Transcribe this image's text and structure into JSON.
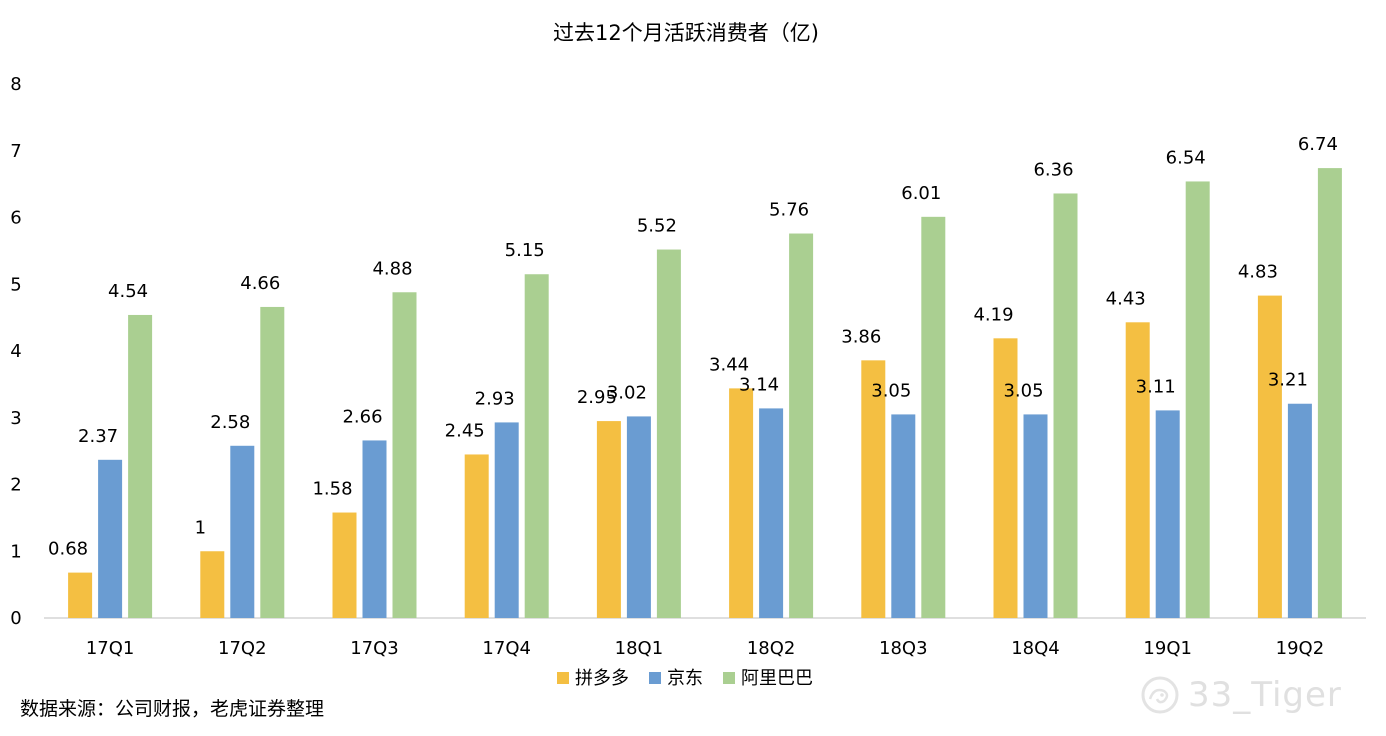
{
  "chart_data": {
    "type": "bar",
    "title": "过去12个月活跃消费者（亿)",
    "categories": [
      "17Q1",
      "17Q2",
      "17Q3",
      "17Q4",
      "18Q1",
      "18Q2",
      "18Q3",
      "18Q4",
      "19Q1",
      "19Q2"
    ],
    "series": [
      {
        "name": "拼多多",
        "color": "#F4BF42",
        "values": [
          0.68,
          1,
          1.58,
          2.45,
          2.95,
          3.44,
          3.86,
          4.19,
          4.43,
          4.83
        ],
        "labels": [
          "0.68",
          "1",
          "1.58",
          "2.45",
          "2.95",
          "3.44",
          "3.86",
          "4.19",
          "4.43",
          "4.83"
        ]
      },
      {
        "name": "京东",
        "color": "#6A9CD2",
        "values": [
          2.37,
          2.58,
          2.66,
          2.93,
          3.02,
          3.14,
          3.05,
          3.05,
          3.11,
          3.21
        ],
        "labels": [
          "2.37",
          "2.58",
          "2.66",
          "2.93",
          "3.02",
          "3.14",
          "3.05",
          "3.05",
          "3.11",
          "3.21"
        ]
      },
      {
        "name": "阿里巴巴",
        "color": "#AACF91",
        "values": [
          4.54,
          4.66,
          4.88,
          5.15,
          5.52,
          5.76,
          6.01,
          6.36,
          6.54,
          6.74
        ],
        "labels": [
          "4.54",
          "4.66",
          "4.88",
          "5.15",
          "5.52",
          "5.76",
          "6.01",
          "6.36",
          "6.54",
          "6.74"
        ]
      }
    ],
    "ylim": [
      0,
      8
    ],
    "yticks": [
      "0",
      "1",
      "2",
      "3",
      "4",
      "5",
      "6",
      "7",
      "8"
    ],
    "grid": false,
    "legend": "bottom"
  },
  "source_note": "数据来源：公司财报，老虎证券整理",
  "watermark": {
    "text": "33_Tiger",
    "icon": "snail-logo-icon"
  }
}
